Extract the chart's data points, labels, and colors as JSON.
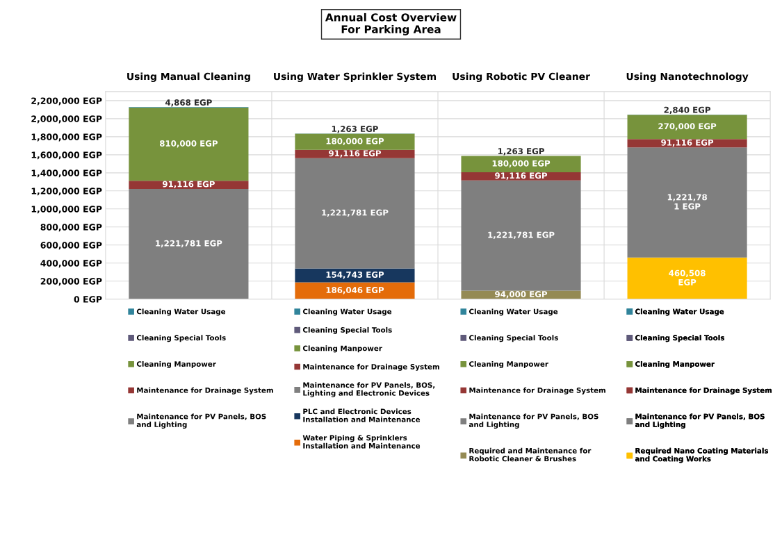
{
  "chart_data": {
    "type": "bar",
    "stacked": true,
    "title": "Annual Cost Overview\nFor Parking Area",
    "categories": [
      "Using Manual Cleaning",
      "Using Water Sprinkler System",
      "Using Robotic PV Cleaner",
      "Using Nanotechnology"
    ],
    "ylim": [
      0,
      2300000
    ],
    "yticks": [
      {
        "value": 0,
        "label": "0 EGP"
      },
      {
        "value": 200000,
        "label": "200,000 EGP"
      },
      {
        "value": 400000,
        "label": "400,000 EGP"
      },
      {
        "value": 600000,
        "label": "600,000 EGP"
      },
      {
        "value": 800000,
        "label": "800,000 EGP"
      },
      {
        "value": 1000000,
        "label": "1,000,000 EGP"
      },
      {
        "value": 1200000,
        "label": "1,200,000 EGP"
      },
      {
        "value": 1400000,
        "label": "1,400,000 EGP"
      },
      {
        "value": 1600000,
        "label": "1,600,000 EGP"
      },
      {
        "value": 1800000,
        "label": "1,800,000 EGP"
      },
      {
        "value": 2000000,
        "label": "2,000,000 EGP"
      },
      {
        "value": 2200000,
        "label": "2,200,000 EGP"
      }
    ],
    "grid": true,
    "legend": "bottom",
    "series": [
      {
        "name": "Water Piping & Sprinklers\nInstallation and Maintenance",
        "color": "#e46c0a",
        "values": [
          null,
          186046,
          null,
          null
        ],
        "value_labels": [
          null,
          "186,046 EGP",
          null,
          null
        ]
      },
      {
        "name": "PLC and Electronic Devices\nInstallation and Maintenance",
        "color": "#17375e",
        "values": [
          null,
          154743,
          null,
          null
        ],
        "value_labels": [
          null,
          "154,743 EGP",
          null,
          null
        ]
      },
      {
        "name": "Required and Maintenance for\nRobotic Cleaner & Brushes",
        "color": "#948a54",
        "values": [
          null,
          null,
          94000,
          null
        ],
        "value_labels": [
          null,
          null,
          "94,000 EGP",
          null
        ]
      },
      {
        "name": "Required Nano Coating Materials\nand Coating Works",
        "color": "#ffc000",
        "values": [
          null,
          null,
          null,
          460508
        ],
        "value_labels": [
          null,
          null,
          null,
          "460,508\nEGP"
        ]
      },
      {
        "name": "Maintenance for PV Panels, BOS\nand Lighting",
        "color": "#7f7f7f",
        "values": [
          1221781,
          null,
          1221781,
          1221781
        ],
        "value_labels": [
          "1,221,781 EGP",
          null,
          "1,221,781 EGP",
          "1,221,78\n1 EGP"
        ]
      },
      {
        "name": "Maintenance for PV Panels, BOS,\nLighting and Electronic Devices",
        "color": "#7f7f7f",
        "values": [
          null,
          1221781,
          null,
          null
        ],
        "value_labels": [
          null,
          "1,221,781 EGP",
          null,
          null
        ]
      },
      {
        "name": "Maintenance for Drainage System",
        "color": "#953735",
        "values": [
          91116,
          91116,
          91116,
          91116
        ],
        "value_labels": [
          "91,116 EGP",
          "91,116 EGP",
          "91,116 EGP",
          "91,116 EGP"
        ]
      },
      {
        "name": "Cleaning Manpower",
        "color": "#77933c",
        "values": [
          810000,
          180000,
          180000,
          270000
        ],
        "value_labels": [
          "810,000 EGP",
          "180,000 EGP",
          "180,000 EGP",
          "270,000 EGP"
        ]
      },
      {
        "name": "Cleaning Special Tools",
        "color": "#5f5a7a",
        "values": [
          0,
          0,
          0,
          0
        ]
      },
      {
        "name": "Cleaning Water Usage",
        "color": "#31849b",
        "values": [
          4868,
          1263,
          1263,
          2840
        ],
        "value_labels": [
          "4,868 EGP",
          "1,263 EGP",
          "1,263 EGP",
          "2,840 EGP"
        ]
      }
    ]
  }
}
